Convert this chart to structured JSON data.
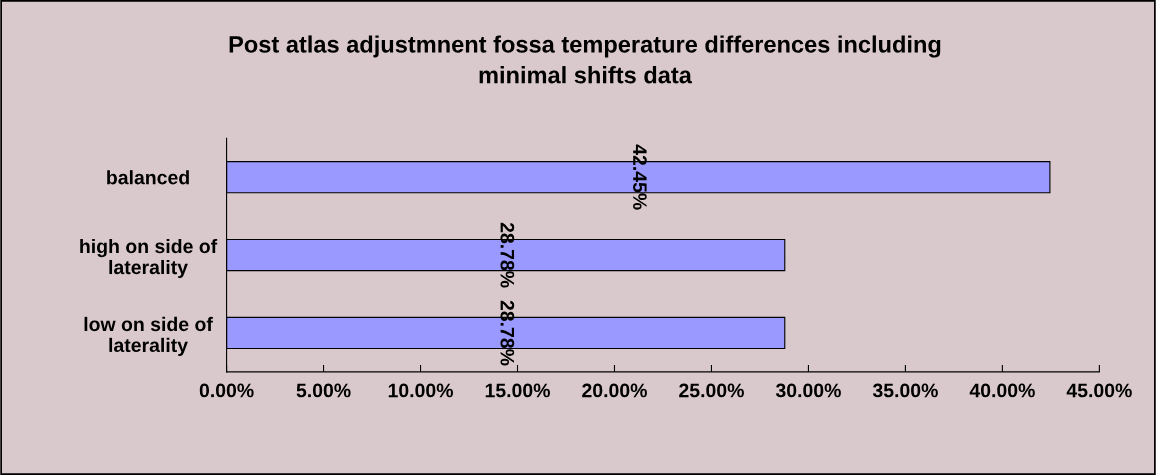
{
  "chart_data": {
    "type": "bar",
    "orientation": "horizontal",
    "title": "Post atlas adjustmnent fossa temperature differences including\nminimal shifts data",
    "categories": [
      "balanced",
      "high on side of\nlaterality",
      "low on side of\nlaterality"
    ],
    "values": [
      42.45,
      28.78,
      28.78
    ],
    "color": "#9999ff",
    "value_labels": [
      "42.45%",
      "28.78%",
      "28.78%"
    ],
    "xlim": [
      0,
      45
    ],
    "xticks": [
      {
        "value": 0,
        "label": "0.00%"
      },
      {
        "value": 5,
        "label": "5.00%"
      },
      {
        "value": 10,
        "label": "10.00%"
      },
      {
        "value": 15,
        "label": "15.00%"
      },
      {
        "value": 20,
        "label": "20.00%"
      },
      {
        "value": 25,
        "label": "25.00%"
      },
      {
        "value": 30,
        "label": "30.00%"
      },
      {
        "value": 35,
        "label": "35.00%"
      },
      {
        "value": 40,
        "label": "40.00%"
      },
      {
        "value": 45,
        "label": "45.00%"
      }
    ],
    "grid": false,
    "legend": false
  }
}
